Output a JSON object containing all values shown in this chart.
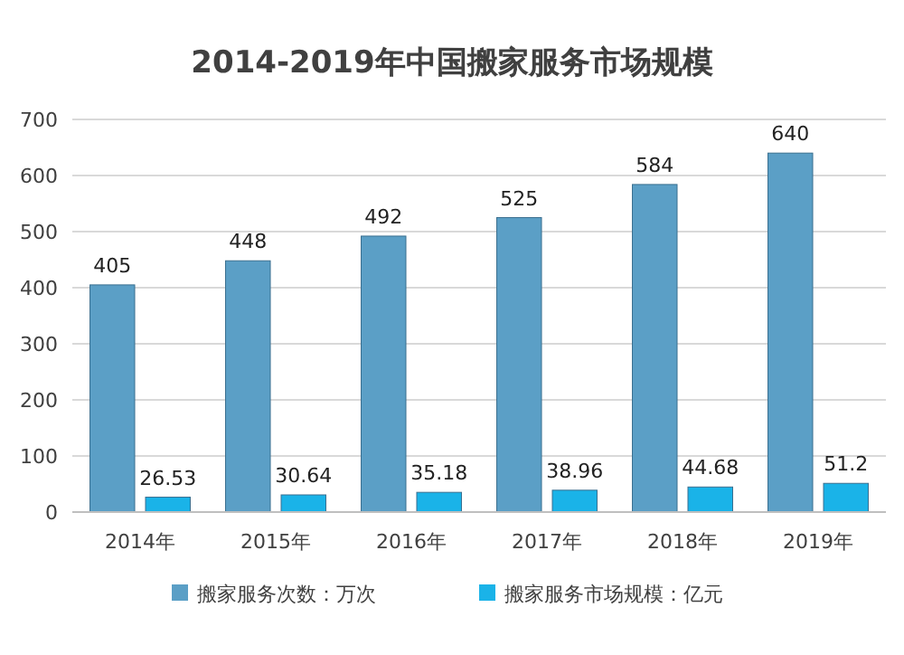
{
  "chart_data": {
    "type": "bar",
    "title": "2014-2019年中国搬家服务市场规模",
    "categories": [
      "2014年",
      "2015年",
      "2016年",
      "2017年",
      "2018年",
      "2019年"
    ],
    "series": [
      {
        "name": "搬家服务次数：万次",
        "color": "#5b9fc6",
        "values": [
          405,
          448,
          492,
          525,
          584,
          640
        ]
      },
      {
        "name": "搬家服务市场规模：亿元",
        "color": "#1ab3e8",
        "values": [
          26.53,
          30.64,
          35.18,
          38.96,
          44.68,
          51.2
        ]
      }
    ],
    "ylim": [
      0,
      700
    ],
    "yticks": [
      0,
      100,
      200,
      300,
      400,
      500,
      600,
      700
    ],
    "grid": "y",
    "legend": "bottom",
    "data_labels": true
  }
}
